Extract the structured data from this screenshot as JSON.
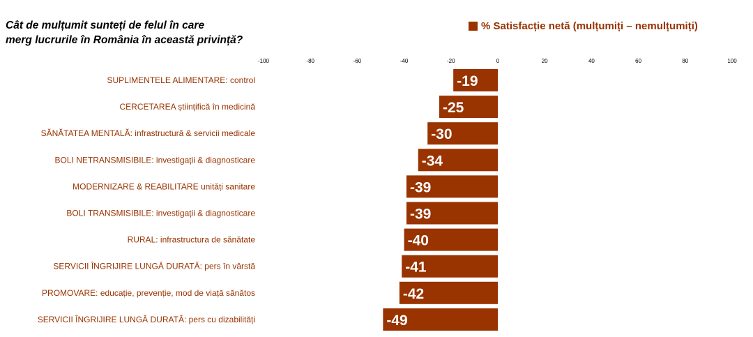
{
  "question": {
    "line1": "Cât de mulțumit sunteți de felul în care",
    "line2": "merg lucrurile în România în această privință?"
  },
  "legend": {
    "label": "% Satisfacție netă (mulțumiți – nemulțumiți)"
  },
  "colors": {
    "bar": "#993300",
    "prefix_text": "#993300",
    "suffix_text": "#993300",
    "value_text": "#ffffff"
  },
  "chart_data": {
    "type": "bar",
    "orientation": "horizontal",
    "xlim": [
      -100,
      100
    ],
    "xticks": [
      -100,
      -80,
      -60,
      -40,
      -20,
      0,
      20,
      40,
      60,
      80,
      100
    ],
    "grid": false,
    "legend_position": "top-right",
    "series": [
      {
        "name": "% Satisfacție netă (mulțumiți – nemulțumiți)"
      }
    ],
    "categories": [
      {
        "prefix": "SUPLIMENTELE ALIMENTARE:",
        "suffix": " control"
      },
      {
        "prefix": "CERCETAREA",
        "suffix": " științifică în medicină"
      },
      {
        "prefix": "SĂNĂTATEA MENTALĂ:",
        "suffix": " infrastructură & servicii medicale"
      },
      {
        "prefix": "BOLI NETRANSMISIBILE:",
        "suffix": " investigații & diagnosticare"
      },
      {
        "prefix": "MODERNIZARE & REABILITARE",
        "suffix": " unități sanitare"
      },
      {
        "prefix": "BOLI TRANSMISIBILE:",
        "suffix": " investigații & diagnosticare"
      },
      {
        "prefix": "RURAL:",
        "suffix": " infrastructura de sănătate"
      },
      {
        "prefix": "SERVICII ÎNGRIJIRE LUNGĂ DURATĂ:",
        "suffix": " pers în vârstă"
      },
      {
        "prefix": "PROMOVARE:",
        "suffix": " educație, prevenție, mod de viață sănătos"
      },
      {
        "prefix": "SERVICII ÎNGRIJIRE LUNGĂ DURATĂ:",
        "suffix": " pers cu dizabilități"
      }
    ],
    "values": [
      -19,
      -25,
      -30,
      -34,
      -39,
      -39,
      -40,
      -41,
      -42,
      -49
    ]
  }
}
